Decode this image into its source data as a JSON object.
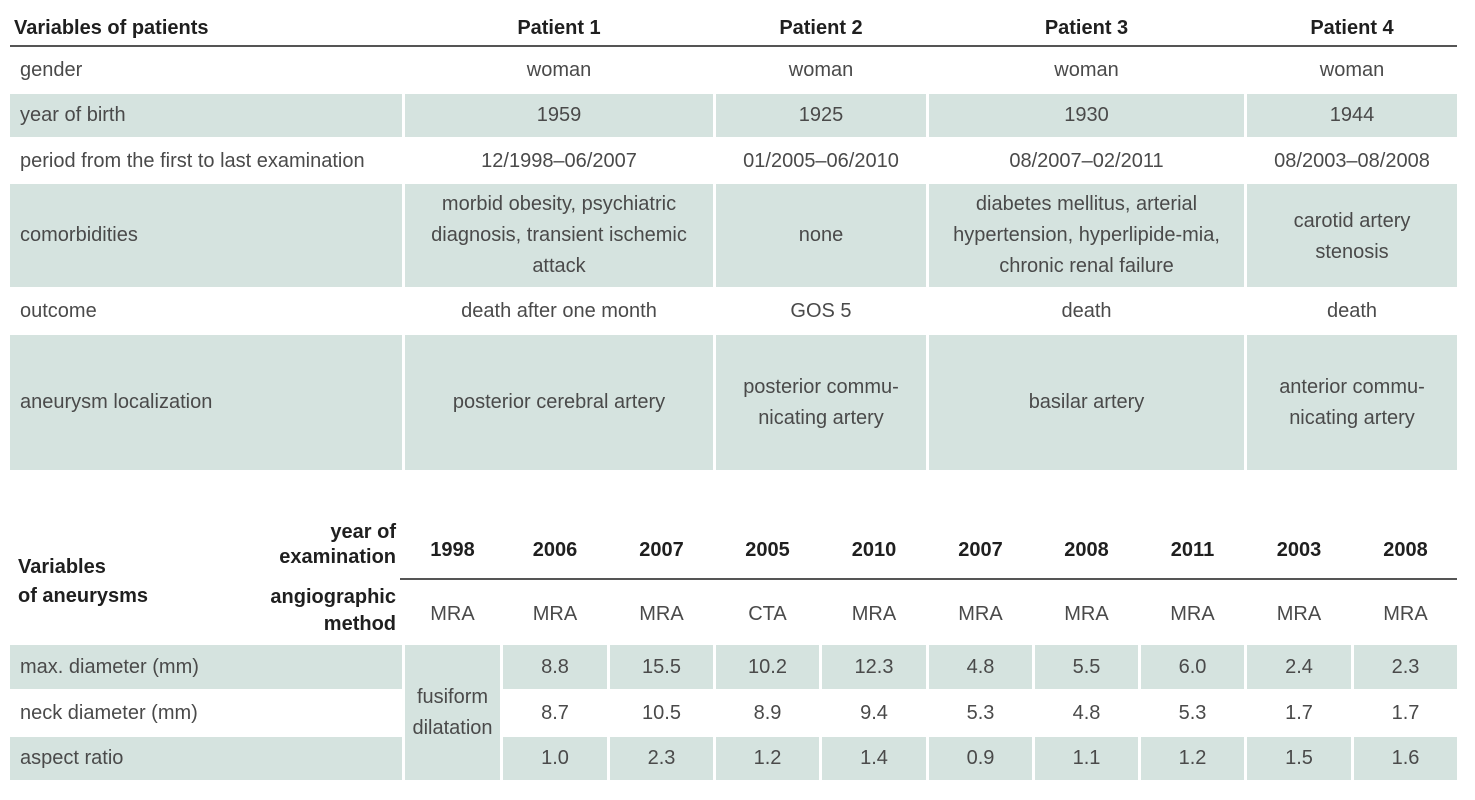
{
  "table1": {
    "header": {
      "label": "Variables of patients",
      "patients": [
        "Patient 1",
        "Patient 2",
        "Patient 3",
        "Patient 4"
      ]
    },
    "rows": [
      {
        "label": "gender",
        "values": [
          "woman",
          "woman",
          "woman",
          "woman"
        ]
      },
      {
        "label": "year of birth",
        "values": [
          "1959",
          "1925",
          "1930",
          "1944"
        ]
      },
      {
        "label": "period from the first to last examination",
        "values": [
          "12/1998–06/2007",
          "01/2005–06/2010",
          "08/2007–02/2011",
          "08/2003–08/2008"
        ]
      },
      {
        "label": "comorbidities",
        "values": [
          "morbid obesity, psychiatric diagnosis, transient ischemic attack",
          "none",
          "diabetes mellitus, arterial hypertension, hyperlipide-mia, chronic renal failure",
          "carotid artery stenosis"
        ]
      },
      {
        "label": "outcome",
        "values": [
          "death after one month",
          "GOS 5",
          "death",
          "death"
        ]
      },
      {
        "label": "aneurysm localization",
        "values": [
          "posterior cerebral artery",
          "posterior commu-nicating artery",
          "basilar artery",
          "anterior commu-nicating artery"
        ]
      }
    ]
  },
  "table2": {
    "header": {
      "label_line1": "Variables",
      "label_line2": "of aneurysms",
      "year_label_line1": "year of",
      "year_label_line2": "examination",
      "method_label_line1": "angiographic",
      "method_label_line2": "method"
    },
    "years": [
      "1998",
      "2006",
      "2007",
      "2005",
      "2010",
      "2007",
      "2008",
      "2011",
      "2003",
      "2008"
    ],
    "methods": [
      "MRA",
      "MRA",
      "MRA",
      "CTA",
      "MRA",
      "MRA",
      "MRA",
      "MRA",
      "MRA",
      "MRA"
    ],
    "fusiform_line1": "fusiform",
    "fusiform_line2": "dilatation",
    "rows": [
      {
        "label": "max. diameter (mm)",
        "values": [
          "8.8",
          "15.5",
          "10.2",
          "12.3",
          "4.8",
          "5.5",
          "6.0",
          "2.4",
          "2.3"
        ]
      },
      {
        "label": "neck diameter (mm)",
        "values": [
          "8.7",
          "10.5",
          "8.9",
          "9.4",
          "5.3",
          "4.8",
          "5.3",
          "1.7",
          "1.7"
        ]
      },
      {
        "label": "aspect ratio",
        "values": [
          "1.0",
          "2.3",
          "1.2",
          "1.4",
          "0.9",
          "1.1",
          "1.2",
          "1.5",
          "1.6"
        ]
      }
    ]
  }
}
